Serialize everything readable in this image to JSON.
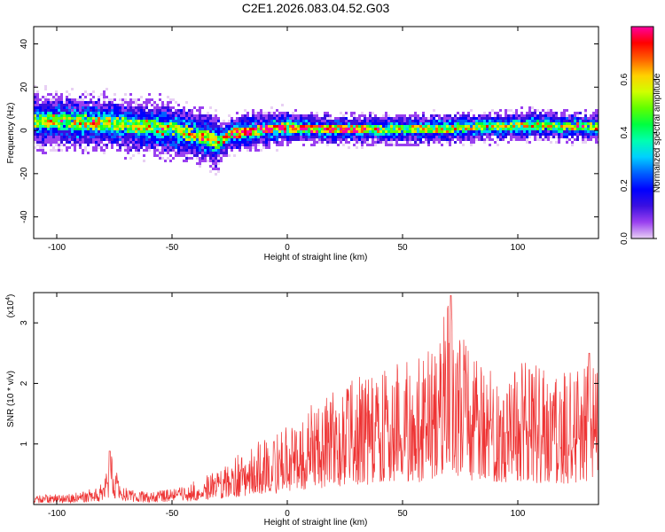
{
  "title": "C2E1.2026.083.04.52.G03",
  "chart_data": [
    {
      "type": "heatmap",
      "panel": "spectrogram",
      "xlabel": "Height of straight line (km)",
      "ylabel": "Frequency (Hz)",
      "xlim": [
        -110,
        135
      ],
      "ylim": [
        -50,
        48
      ],
      "xticks": [
        -100,
        -50,
        0,
        50,
        100
      ],
      "xtick_labels": [
        "-100",
        "-50",
        "0",
        "50",
        "100"
      ],
      "yticks": [
        -40,
        -20,
        0,
        20,
        40
      ],
      "ytick_labels": [
        "-40",
        "-20",
        "0",
        "20",
        "40"
      ],
      "ridge_frequency_hz": {
        "x": [
          -110,
          -80,
          -50,
          -35,
          -30,
          -25,
          -10,
          0,
          20,
          50,
          80,
          110,
          135
        ],
        "y": [
          5,
          4,
          1,
          -3,
          -5,
          -1,
          1,
          2,
          1,
          1,
          2,
          3,
          2
        ]
      },
      "colorbar": {
        "label": "Normalized spectral amplitude",
        "range": [
          0,
          0.8
        ],
        "ticks": [
          0,
          0.2,
          0.4,
          0.6
        ],
        "tick_labels": [
          "0.0",
          "0.2",
          "0.4",
          "0.6"
        ],
        "colors": [
          "#e8d0f4",
          "#9a40f0",
          "#3a10e0",
          "#0000ff",
          "#0060ff",
          "#00d0ff",
          "#00ffb0",
          "#00ff40",
          "#60ff00",
          "#d0ff00",
          "#ffd000",
          "#ff6000",
          "#ff0000",
          "#ff00a0"
        ]
      }
    },
    {
      "type": "line",
      "panel": "snr",
      "xlabel": "Height of straight line (km)",
      "ylabel": "SNR (10 * v/v)",
      "multiplier_label": "(x10",
      "multiplier_exp": "4",
      "multiplier_close": ")",
      "xlim": [
        -110,
        135
      ],
      "ylim": [
        0,
        3.5
      ],
      "xticks": [
        -100,
        -50,
        0,
        50,
        100
      ],
      "xtick_labels": [
        "-100",
        "-50",
        "0",
        "50",
        "100"
      ],
      "yticks": [
        1,
        2,
        3
      ],
      "ytick_labels": [
        "1",
        "2",
        "3"
      ],
      "color": "#ee3333",
      "envelope_x": [
        -110,
        -90,
        -80,
        -76,
        -72,
        -60,
        -45,
        -30,
        -15,
        0,
        15,
        30,
        45,
        60,
        70,
        80,
        100,
        120,
        135
      ],
      "envelope_y": [
        0.15,
        0.2,
        0.35,
        0.85,
        0.3,
        0.2,
        0.3,
        0.6,
        1.0,
        1.3,
        1.8,
        2.1,
        2.3,
        2.5,
        3.4,
        2.6,
        2.4,
        2.3,
        2.3
      ],
      "peaks": [
        {
          "x": -77,
          "y": 0.88
        },
        {
          "x": 71,
          "y": 3.45
        },
        {
          "x": 131,
          "y": 2.5
        }
      ]
    }
  ]
}
